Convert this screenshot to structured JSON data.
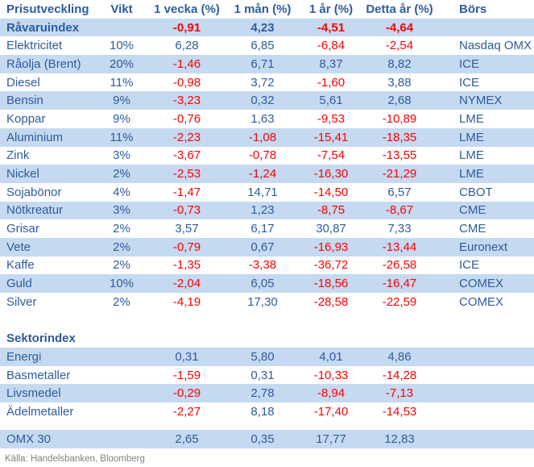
{
  "colors": {
    "row_shade": "#C5D9F1",
    "text_blue": "#2E5C9C",
    "negative_red": "#FF0000",
    "footer_gray": "#808080"
  },
  "footer": {
    "source": "Källa: Handelsbanken, Bloomberg"
  },
  "table": {
    "columns": [
      {
        "label": "Prisutveckling"
      },
      {
        "label": "Vikt"
      },
      {
        "label": "1 vecka (%)"
      },
      {
        "label": "1 mån (%)"
      },
      {
        "label": "1 år (%)"
      },
      {
        "label": "Detta år (%)"
      },
      {
        "label": "Börs"
      }
    ],
    "rows": [
      {
        "name": "Råvaruindex",
        "vikt": "",
        "v1w": "-0,91",
        "v1m": "4,23",
        "v1y": "-4,51",
        "ytd": "-4,64",
        "bors": "",
        "bold": true,
        "shaded": true
      },
      {
        "name": "Elektricitet",
        "vikt": "10%",
        "v1w": "6,28",
        "v1m": "6,85",
        "v1y": "-6,84",
        "ytd": "-2,54",
        "bors": "Nasdaq OMX",
        "shaded": false
      },
      {
        "name": "Råolja (Brent)",
        "vikt": "20%",
        "v1w": "-1,46",
        "v1m": "6,71",
        "v1y": "8,37",
        "ytd": "8,82",
        "bors": "ICE",
        "shaded": true
      },
      {
        "name": "Diesel",
        "vikt": "11%",
        "v1w": "-0,98",
        "v1m": "3,72",
        "v1y": "-1,60",
        "ytd": "3,88",
        "bors": "ICE",
        "shaded": false
      },
      {
        "name": "Bensin",
        "vikt": "9%",
        "v1w": "-3,23",
        "v1m": "0,32",
        "v1y": "5,61",
        "ytd": "2,68",
        "bors": "NYMEX",
        "shaded": true
      },
      {
        "name": "Koppar",
        "vikt": "9%",
        "v1w": "-0,76",
        "v1m": "1,63",
        "v1y": "-9,53",
        "ytd": "-10,89",
        "bors": "LME",
        "shaded": false
      },
      {
        "name": "Aluminium",
        "vikt": "11%",
        "v1w": "-2,23",
        "v1m": "-1,08",
        "v1y": "-15,41",
        "ytd": "-18,35",
        "bors": "LME",
        "shaded": true
      },
      {
        "name": "Zink",
        "vikt": "3%",
        "v1w": "-3,67",
        "v1m": "-0,78",
        "v1y": "-7,54",
        "ytd": "-13,55",
        "bors": "LME",
        "shaded": false
      },
      {
        "name": "Nickel",
        "vikt": "2%",
        "v1w": "-2,53",
        "v1m": "-1,24",
        "v1y": "-16,30",
        "ytd": "-21,29",
        "bors": "LME",
        "shaded": true
      },
      {
        "name": "Sojabönor",
        "vikt": "4%",
        "v1w": "-1,47",
        "v1m": "14,71",
        "v1y": "-14,50",
        "ytd": "6,57",
        "bors": "CBOT",
        "shaded": false
      },
      {
        "name": "Nötkreatur",
        "vikt": "3%",
        "v1w": "-0,73",
        "v1m": "1,23",
        "v1y": "-8,75",
        "ytd": "-8,67",
        "bors": "CME",
        "shaded": true
      },
      {
        "name": "Grisar",
        "vikt": "2%",
        "v1w": "3,57",
        "v1m": "6,17",
        "v1y": "30,87",
        "ytd": "7,33",
        "bors": "CME",
        "shaded": false
      },
      {
        "name": "Vete",
        "vikt": "2%",
        "v1w": "-0,79",
        "v1m": "0,67",
        "v1y": "-16,93",
        "ytd": "-13,44",
        "bors": "Euronext",
        "shaded": true
      },
      {
        "name": "Kaffe",
        "vikt": "2%",
        "v1w": "-1,35",
        "v1m": "-3,38",
        "v1y": "-36,72",
        "ytd": "-26,58",
        "bors": "ICE",
        "shaded": false
      },
      {
        "name": "Guld",
        "vikt": "10%",
        "v1w": "-2,04",
        "v1m": "6,05",
        "v1y": "-18,56",
        "ytd": "-16,47",
        "bors": "COMEX",
        "shaded": true
      },
      {
        "name": "Silver",
        "vikt": "2%",
        "v1w": "-4,19",
        "v1m": "17,30",
        "v1y": "-28,58",
        "ytd": "-22,59",
        "bors": "COMEX",
        "shaded": false
      },
      {
        "spacer": "full"
      },
      {
        "name": "Sektorindex",
        "vikt": "",
        "v1w": "",
        "v1m": "",
        "v1y": "",
        "ytd": "",
        "bors": "",
        "bold": true,
        "shaded": false,
        "section": true
      },
      {
        "name": "Energi",
        "vikt": "",
        "v1w": "0,31",
        "v1m": "5,80",
        "v1y": "4,01",
        "ytd": "4,86",
        "bors": "",
        "shaded": true
      },
      {
        "name": "Basmetaller",
        "vikt": "",
        "v1w": "-1,59",
        "v1m": "0,31",
        "v1y": "-10,33",
        "ytd": "-14,28",
        "bors": "",
        "shaded": false
      },
      {
        "name": "Livsmedel",
        "vikt": "",
        "v1w": "-0,29",
        "v1m": "2,78",
        "v1y": "-8,94",
        "ytd": "-7,13",
        "bors": "",
        "shaded": true
      },
      {
        "name": "Ädelmetaller",
        "vikt": "",
        "v1w": "-2,27",
        "v1m": "8,18",
        "v1y": "-17,40",
        "ytd": "-14,53",
        "bors": "",
        "shaded": false
      },
      {
        "spacer": "half"
      },
      {
        "name": "OMX 30",
        "vikt": "",
        "v1w": "2,65",
        "v1m": "0,35",
        "v1y": "17,77",
        "ytd": "12,83",
        "bors": "",
        "shaded": true
      }
    ]
  }
}
